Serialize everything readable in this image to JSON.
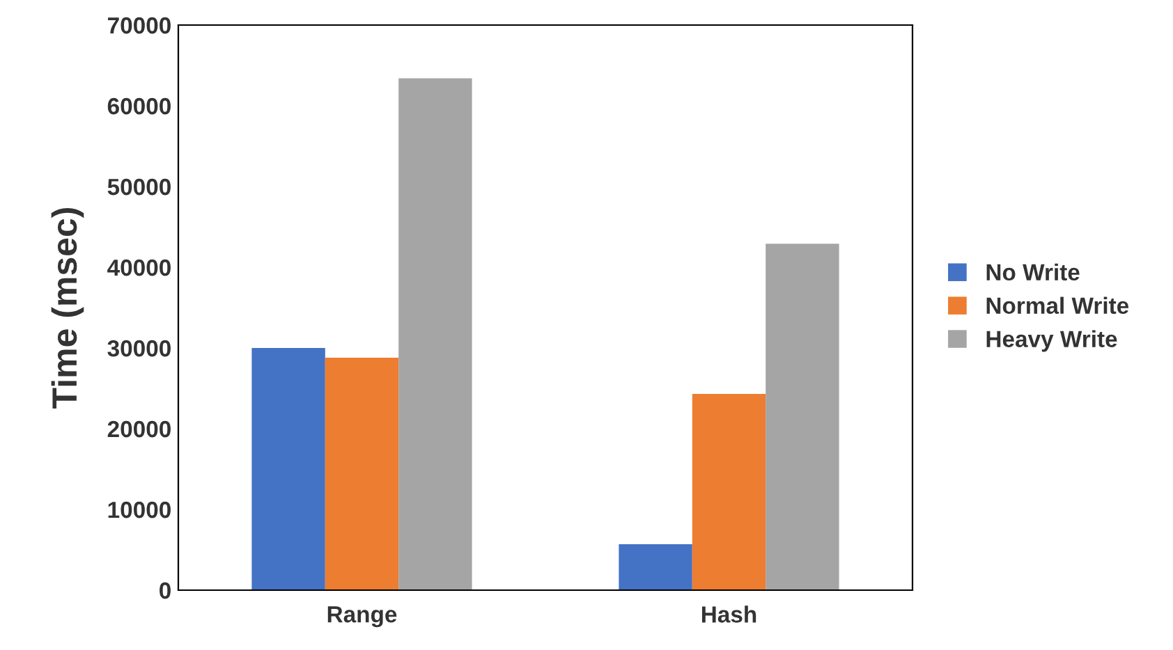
{
  "chart_data": {
    "type": "bar",
    "ylabel": "Time (msec)",
    "categories": [
      "Range",
      "Hash"
    ],
    "series": [
      {
        "name": "No Write",
        "color": "#4472c4",
        "values": [
          30000,
          5700
        ]
      },
      {
        "name": "Normal Write",
        "color": "#ed7d31",
        "values": [
          28800,
          24300
        ]
      },
      {
        "name": "Heavy Write",
        "color": "#a5a5a5",
        "values": [
          63400,
          42900
        ]
      }
    ],
    "ylim": [
      0,
      70000
    ],
    "yticks": [
      0,
      10000,
      20000,
      30000,
      40000,
      50000,
      60000,
      70000
    ],
    "grid": false,
    "legend": "right"
  }
}
